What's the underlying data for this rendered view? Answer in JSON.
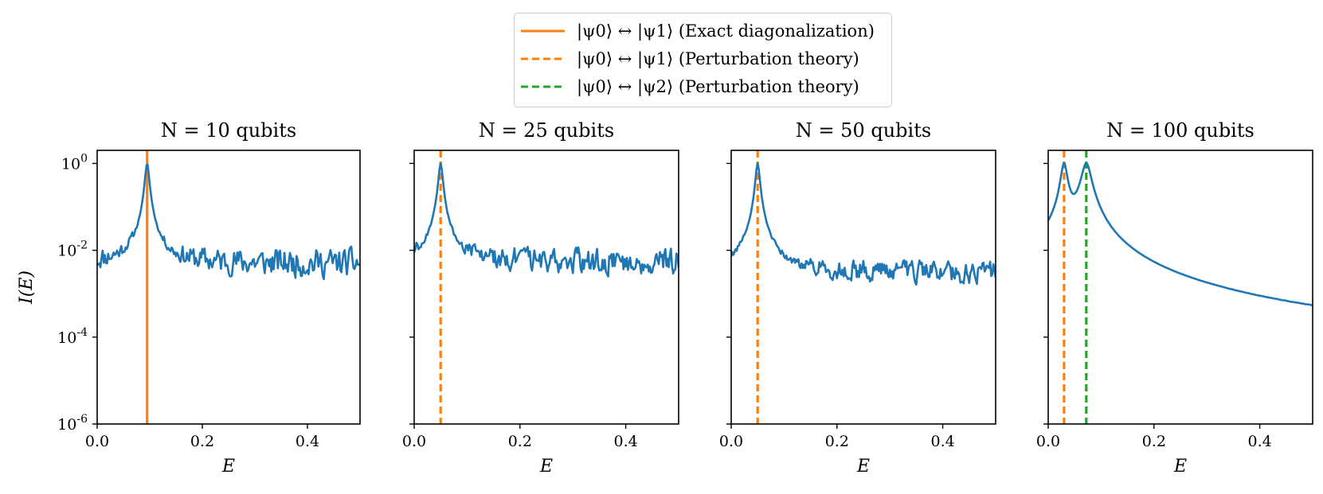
{
  "legend": {
    "items": [
      {
        "label": "|ψ0⟩ ↔ |ψ1⟩ (Exact diagonalization)",
        "color": "#ff7f0e",
        "style": "solid"
      },
      {
        "label": "|ψ0⟩ ↔ |ψ1⟩ (Perturbation theory)",
        "color": "#ff7f0e",
        "style": "dashed"
      },
      {
        "label": "|ψ0⟩ ↔ |ψ2⟩ (Perturbation theory)",
        "color": "#2ca02c",
        "style": "dashed"
      }
    ]
  },
  "chart_data": [
    {
      "type": "line",
      "title": "N = 10 qubits",
      "xlabel": "E",
      "ylabel": "I(E)",
      "xlim": [
        0,
        0.5
      ],
      "ylim": [
        1e-06,
        2
      ],
      "yscale": "log",
      "xticks": [
        "0.0",
        "0.2",
        "0.4"
      ],
      "xtick_values": [
        0,
        0.2,
        0.4
      ],
      "yticks": [
        "10^0",
        "10^-2",
        "10^-4",
        "10^-6"
      ],
      "ytick_exponents": [
        0,
        -2,
        -4,
        -6
      ],
      "series_color": "#1f77b4",
      "baseline": 0.005,
      "noise": 0.28,
      "seed": 11,
      "peaks": [
        {
          "x": 0.095,
          "height": 1.0,
          "width": 0.0035
        }
      ],
      "vlines": [
        {
          "x": 0.095,
          "color": "#ff7f0e",
          "style": "solid"
        }
      ],
      "tail": null
    },
    {
      "type": "line",
      "title": "N = 25 qubits",
      "xlabel": "E",
      "ylabel": "",
      "xlim": [
        0,
        0.5
      ],
      "ylim": [
        1e-06,
        2
      ],
      "yscale": "log",
      "xticks": [
        "0.0",
        "0.2",
        "0.4"
      ],
      "xtick_values": [
        0,
        0.2,
        0.4
      ],
      "yticks": [],
      "ytick_exponents": [
        0,
        -2,
        -4,
        -6
      ],
      "series_color": "#1f77b4",
      "baseline": 0.0055,
      "noise": 0.25,
      "seed": 25,
      "peaks": [
        {
          "x": 0.05,
          "height": 1.0,
          "width": 0.0035
        }
      ],
      "vlines": [
        {
          "x": 0.05,
          "color": "#ff7f0e",
          "style": "dashed"
        }
      ],
      "tail": null
    },
    {
      "type": "line",
      "title": "N = 50 qubits",
      "xlabel": "E",
      "ylabel": "",
      "xlim": [
        0,
        0.5
      ],
      "ylim": [
        1e-06,
        2
      ],
      "yscale": "log",
      "xticks": [
        "0.0",
        "0.2",
        "0.4"
      ],
      "xtick_values": [
        0,
        0.2,
        0.4
      ],
      "yticks": [],
      "ytick_exponents": [
        0,
        -2,
        -4,
        -6
      ],
      "series_color": "#1f77b4",
      "baseline": 0.003,
      "noise": 0.22,
      "seed": 50,
      "peaks": [
        {
          "x": 0.05,
          "height": 1.0,
          "width": 0.0035
        }
      ],
      "vlines": [
        {
          "x": 0.05,
          "color": "#ff7f0e",
          "style": "dashed"
        }
      ],
      "tail": null
    },
    {
      "type": "line",
      "title": "N = 100 qubits",
      "xlabel": "E",
      "ylabel": "",
      "xlim": [
        0,
        0.5
      ],
      "ylim": [
        1e-06,
        2
      ],
      "yscale": "log",
      "xticks": [
        "0.0",
        "0.2",
        "0.4"
      ],
      "xtick_values": [
        0,
        0.2,
        0.4
      ],
      "yticks": [],
      "ytick_exponents": [
        0,
        -2,
        -4,
        -6
      ],
      "series_color": "#1f77b4",
      "baseline": 8.5e-06,
      "noise": 0.22,
      "seed": 100,
      "peaks": [
        {
          "x": 0.03,
          "height": 1.0,
          "width": 0.0055
        },
        {
          "x": 0.072,
          "height": 1.0,
          "width": 0.0085
        }
      ],
      "vlines": [
        {
          "x": 0.03,
          "color": "#ff7f0e",
          "style": "dashed"
        },
        {
          "x": 0.072,
          "color": "#2ca02c",
          "style": "dashed"
        }
      ],
      "tail": {
        "start": 0.0,
        "value": 0.0025,
        "decay": 0.04
      }
    }
  ]
}
